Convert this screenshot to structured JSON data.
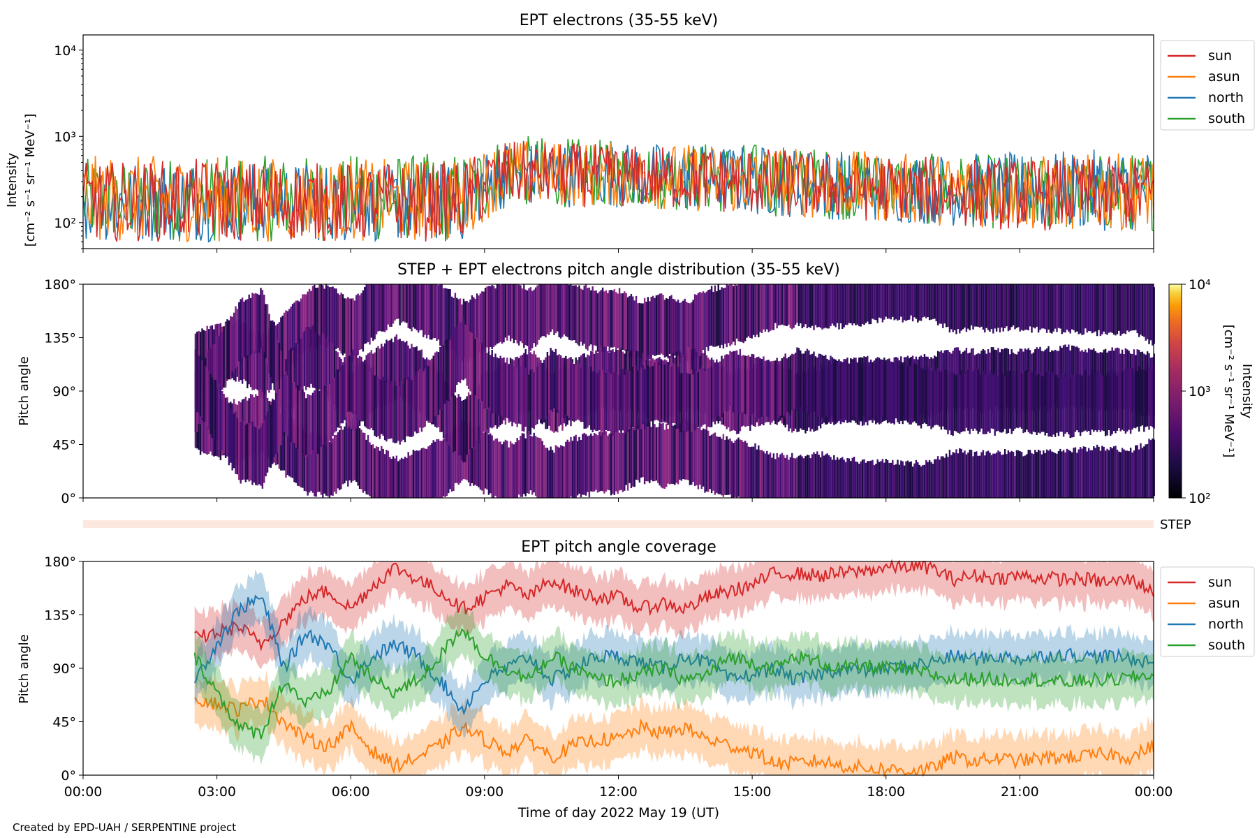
{
  "figure": {
    "credit": "Created by EPD-UAH / SERPENTINE project",
    "xlabel": "Time of day 2022 May 19 (UT)",
    "x_ticks": [
      "00:00",
      "03:00",
      "06:00",
      "09:00",
      "12:00",
      "15:00",
      "18:00",
      "21:00",
      "00:00"
    ]
  },
  "colors": {
    "sun": "#d62728",
    "asun": "#ff7f0e",
    "north": "#1f77b4",
    "south": "#2ca02c",
    "step_band": "#fde8e0"
  },
  "chart_data": [
    {
      "id": "intensity",
      "type": "line",
      "title": "EPT electrons (35-55 keV)",
      "ylabel_line1": "Intensity",
      "ylabel_line2": "[cm⁻² s⁻¹ sr⁻¹ MeV⁻¹]",
      "yscale": "log",
      "ylim": [
        50,
        15000
      ],
      "y_ticks": [
        {
          "value": 100,
          "label": "10²"
        },
        {
          "value": 1000,
          "label": "10³"
        },
        {
          "value": 10000,
          "label": "10⁴"
        }
      ],
      "xlim": [
        0,
        24
      ],
      "x_unit": "hours since 2022-05-19 00:00 UT",
      "legend": "right",
      "series": [
        {
          "name": "sun",
          "envelope": [
            [
              0,
              60,
              500
            ],
            [
              2.5,
              60,
              550
            ],
            [
              5,
              60,
              500
            ],
            [
              8.5,
              60,
              500
            ],
            [
              9.5,
              150,
              900
            ],
            [
              12,
              150,
              800
            ],
            [
              15,
              120,
              750
            ],
            [
              18,
              100,
              600
            ],
            [
              21,
              80,
              550
            ],
            [
              24,
              80,
              600
            ]
          ]
        },
        {
          "name": "asun",
          "envelope": [
            [
              0,
              60,
              600
            ],
            [
              2.5,
              60,
              600
            ],
            [
              5,
              60,
              550
            ],
            [
              8.5,
              60,
              550
            ],
            [
              9.5,
              150,
              950
            ],
            [
              12,
              150,
              850
            ],
            [
              15,
              120,
              800
            ],
            [
              18,
              100,
              650
            ],
            [
              21,
              80,
              600
            ],
            [
              24,
              80,
              650
            ]
          ]
        },
        {
          "name": "north",
          "envelope": [
            [
              0,
              60,
              500
            ],
            [
              2.5,
              60,
              550
            ],
            [
              5,
              60,
              500
            ],
            [
              8.5,
              60,
              500
            ],
            [
              9.5,
              150,
              900
            ],
            [
              12,
              150,
              850
            ],
            [
              15,
              120,
              800
            ],
            [
              18,
              100,
              650
            ],
            [
              21,
              80,
              650
            ],
            [
              24,
              80,
              750
            ]
          ]
        },
        {
          "name": "south",
          "envelope": [
            [
              0,
              60,
              550
            ],
            [
              2.5,
              60,
              600
            ],
            [
              5,
              60,
              600
            ],
            [
              8.5,
              60,
              650
            ],
            [
              9.5,
              150,
              1050
            ],
            [
              12,
              150,
              900
            ],
            [
              15,
              120,
              850
            ],
            [
              18,
              100,
              650
            ],
            [
              21,
              80,
              600
            ],
            [
              24,
              80,
              650
            ]
          ]
        }
      ]
    },
    {
      "id": "pad",
      "type": "heatmap",
      "title": "STEP + EPT electrons pitch angle distribution (35-55 keV)",
      "ylabel": "Pitch angle",
      "ylim": [
        0,
        180
      ],
      "y_ticks": [
        "0°",
        "45°",
        "90°",
        "135°",
        "180°"
      ],
      "xlim": [
        0,
        24
      ],
      "data_start": 2.5,
      "colorbar": {
        "label": "Intensity",
        "units": "[cm⁻² s⁻¹ sr⁻¹ MeV⁻¹]",
        "scale": "log",
        "range": [
          100,
          10000
        ],
        "ticks": [
          "10²",
          "10³",
          "10⁴"
        ]
      },
      "step_label": "STEP"
    },
    {
      "id": "coverage",
      "type": "line",
      "title": "EPT pitch angle coverage",
      "ylabel": "Pitch angle",
      "ylim": [
        0,
        180
      ],
      "y_ticks": [
        "0°",
        "45°",
        "90°",
        "135°",
        "180°"
      ],
      "xlim": [
        0,
        24
      ],
      "legend": "right",
      "band_halfwidth": 20,
      "series": [
        {
          "name": "sun",
          "points": [
            [
              2.5,
              115
            ],
            [
              3,
              120
            ],
            [
              3.5,
              125
            ],
            [
              4,
              110
            ],
            [
              4.5,
              130
            ],
            [
              5,
              150
            ],
            [
              5.5,
              155
            ],
            [
              6,
              140
            ],
            [
              6.5,
              160
            ],
            [
              7,
              175
            ],
            [
              7.5,
              165
            ],
            [
              8,
              155
            ],
            [
              8.5,
              140
            ],
            [
              9,
              150
            ],
            [
              9.5,
              160
            ],
            [
              10,
              150
            ],
            [
              10.5,
              165
            ],
            [
              11,
              155
            ],
            [
              11.5,
              150
            ],
            [
              12,
              150
            ],
            [
              12.5,
              140
            ],
            [
              13,
              145
            ],
            [
              13.5,
              140
            ],
            [
              14,
              150
            ],
            [
              14.5,
              155
            ],
            [
              15,
              160
            ],
            [
              15.5,
              170
            ],
            [
              16,
              170
            ],
            [
              16.5,
              168
            ],
            [
              17,
              170
            ],
            [
              17.5,
              172
            ],
            [
              18,
              175
            ],
            [
              18.5,
              176
            ],
            [
              19,
              175
            ],
            [
              19.5,
              165
            ],
            [
              20,
              168
            ],
            [
              20.5,
              166
            ],
            [
              21,
              168
            ],
            [
              21.5,
              166
            ],
            [
              22,
              165
            ],
            [
              22.5,
              165
            ],
            [
              23,
              162
            ],
            [
              23.5,
              165
            ],
            [
              24,
              155
            ]
          ]
        },
        {
          "name": "asun",
          "points": [
            [
              2.5,
              65
            ],
            [
              3,
              60
            ],
            [
              3.5,
              55
            ],
            [
              4,
              65
            ],
            [
              4.5,
              45
            ],
            [
              5,
              30
            ],
            [
              5.5,
              25
            ],
            [
              6,
              40
            ],
            [
              6.5,
              20
            ],
            [
              7,
              8
            ],
            [
              7.5,
              15
            ],
            [
              8,
              25
            ],
            [
              8.5,
              40
            ],
            [
              9,
              30
            ],
            [
              9.5,
              20
            ],
            [
              10,
              30
            ],
            [
              10.5,
              15
            ],
            [
              11,
              25
            ],
            [
              11.5,
              30
            ],
            [
              12,
              30
            ],
            [
              12.5,
              40
            ],
            [
              13,
              35
            ],
            [
              13.5,
              40
            ],
            [
              14,
              30
            ],
            [
              14.5,
              25
            ],
            [
              15,
              20
            ],
            [
              15.5,
              10
            ],
            [
              16,
              10
            ],
            [
              16.5,
              12
            ],
            [
              17,
              8
            ],
            [
              17.5,
              6
            ],
            [
              18,
              5
            ],
            [
              18.5,
              4
            ],
            [
              19,
              5
            ],
            [
              19.5,
              15
            ],
            [
              20,
              12
            ],
            [
              20.5,
              14
            ],
            [
              21,
              12
            ],
            [
              21.5,
              14
            ],
            [
              22,
              15
            ],
            [
              22.5,
              16
            ],
            [
              23,
              18
            ],
            [
              23.5,
              15
            ],
            [
              24,
              25
            ]
          ]
        },
        {
          "name": "north",
          "points": [
            [
              2.5,
              80
            ],
            [
              3,
              110
            ],
            [
              3.5,
              140
            ],
            [
              4,
              150
            ],
            [
              4.5,
              90
            ],
            [
              5,
              120
            ],
            [
              5.5,
              110
            ],
            [
              6,
              80
            ],
            [
              6.5,
              100
            ],
            [
              7,
              110
            ],
            [
              7.5,
              100
            ],
            [
              8,
              80
            ],
            [
              8.5,
              55
            ],
            [
              9,
              80
            ],
            [
              9.5,
              90
            ],
            [
              10,
              100
            ],
            [
              10.5,
              80
            ],
            [
              11,
              90
            ],
            [
              11.5,
              100
            ],
            [
              12,
              100
            ],
            [
              12.5,
              95
            ],
            [
              13,
              90
            ],
            [
              13.5,
              100
            ],
            [
              14,
              95
            ],
            [
              14.5,
              80
            ],
            [
              15,
              85
            ],
            [
              15.5,
              90
            ],
            [
              16,
              80
            ],
            [
              16.5,
              85
            ],
            [
              17,
              90
            ],
            [
              17.5,
              88
            ],
            [
              18,
              90
            ],
            [
              18.5,
              92
            ],
            [
              19,
              95
            ],
            [
              19.5,
              100
            ],
            [
              20,
              98
            ],
            [
              20.5,
              100
            ],
            [
              21,
              98
            ],
            [
              21.5,
              100
            ],
            [
              22,
              102
            ],
            [
              22.5,
              100
            ],
            [
              23,
              100
            ],
            [
              23.5,
              98
            ],
            [
              24,
              95
            ]
          ]
        },
        {
          "name": "south",
          "points": [
            [
              2.5,
              100
            ],
            [
              3,
              70
            ],
            [
              3.5,
              40
            ],
            [
              4,
              35
            ],
            [
              4.5,
              80
            ],
            [
              5,
              60
            ],
            [
              5.5,
              70
            ],
            [
              6,
              100
            ],
            [
              6.5,
              80
            ],
            [
              7,
              70
            ],
            [
              7.5,
              80
            ],
            [
              8,
              100
            ],
            [
              8.5,
              125
            ],
            [
              9,
              100
            ],
            [
              9.5,
              90
            ],
            [
              10,
              80
            ],
            [
              10.5,
              100
            ],
            [
              11,
              90
            ],
            [
              11.5,
              80
            ],
            [
              12,
              80
            ],
            [
              12.5,
              85
            ],
            [
              13,
              90
            ],
            [
              13.5,
              80
            ],
            [
              14,
              85
            ],
            [
              14.5,
              100
            ],
            [
              15,
              95
            ],
            [
              15.5,
              90
            ],
            [
              16,
              100
            ],
            [
              16.5,
              95
            ],
            [
              17,
              90
            ],
            [
              17.5,
              92
            ],
            [
              18,
              90
            ],
            [
              18.5,
              88
            ],
            [
              19,
              85
            ],
            [
              19.5,
              80
            ],
            [
              20,
              82
            ],
            [
              20.5,
              80
            ],
            [
              21,
              82
            ],
            [
              21.5,
              80
            ],
            [
              22,
              78
            ],
            [
              22.5,
              80
            ],
            [
              23,
              80
            ],
            [
              23.5,
              82
            ],
            [
              24,
              85
            ]
          ]
        }
      ]
    }
  ]
}
